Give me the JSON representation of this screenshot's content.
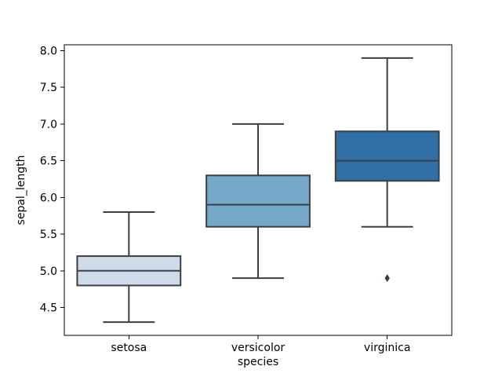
{
  "figure": {
    "background": "#ffffff"
  },
  "chart_data": {
    "type": "boxplot",
    "title": "",
    "xlabel": "species",
    "ylabel": "sepal_length",
    "categories": [
      "setosa",
      "versicolor",
      "virginica"
    ],
    "ylim": [
      4.12,
      8.08
    ],
    "yticks": [
      8.0,
      7.5,
      7.0,
      6.5,
      6.0,
      5.5,
      5.0,
      4.5
    ],
    "ytick_labels": [
      "8.0",
      "7.5",
      "7.0",
      "6.5",
      "6.0",
      "5.5",
      "5.0",
      "4.5"
    ],
    "grid": false,
    "legend": null,
    "boxes": [
      {
        "category": "setosa",
        "whisker_low": 4.3,
        "q1": 4.8,
        "median": 5.0,
        "q3": 5.2,
        "whisker_high": 5.8,
        "outliers": [],
        "fill_color": "#cedcea"
      },
      {
        "category": "versicolor",
        "whisker_low": 4.9,
        "q1": 5.6,
        "median": 5.9,
        "q3": 6.3,
        "whisker_high": 7.0,
        "outliers": [],
        "fill_color": "#76a8c9"
      },
      {
        "category": "virginica",
        "whisker_low": 5.6,
        "q1": 6.225,
        "median": 6.5,
        "q3": 6.9,
        "whisker_high": 7.9,
        "outliers": [
          4.9
        ],
        "fill_color": "#2f6fa4"
      }
    ],
    "style": {
      "box_line_color": "#3b3f44",
      "spine_color": "#000000",
      "text_color": "#000000"
    }
  }
}
